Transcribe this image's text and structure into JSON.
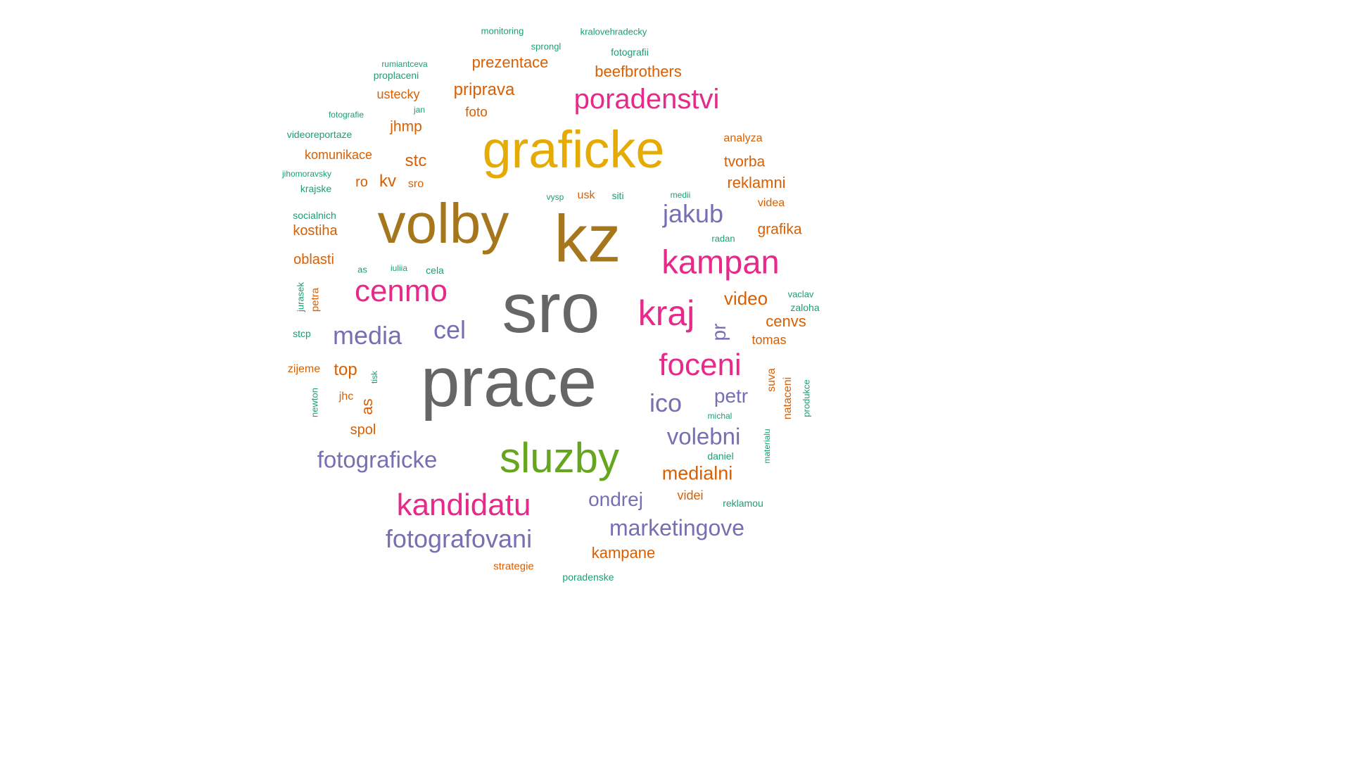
{
  "palette": {
    "gray": "#666666",
    "olive": "#A6761D",
    "gold": "#E6AB02",
    "magenta": "#E7298A",
    "purple": "#7570B3",
    "orange": "#D95F02",
    "teal": "#1B9E77",
    "green": "#66A61E"
  },
  "words": {
    "sro": "sro",
    "prace": "prace",
    "kz": "kz",
    "volby": "volby",
    "graficke": "graficke",
    "sluzby": "sluzby",
    "kampan": "kampan",
    "kraj": "kraj",
    "foceni": "foceni",
    "cenmo": "cenmo",
    "kandidatu": "kandidatu",
    "poradenstvi": "poradenstvi",
    "jakub": "jakub",
    "media": "media",
    "cel": "cel",
    "ico": "ico",
    "volebni": "volebni",
    "fotograficke": "fotograficke",
    "fotografovani": "fotografovani",
    "marketingove": "marketingove",
    "ondrej": "ondrej",
    "petr": "petr",
    "pr": "pr",
    "medialni": "medialni",
    "kampane": "kampane",
    "video": "video",
    "cenvs": "cenvs",
    "tomas": "tomas",
    "grafika": "grafika",
    "reklamni": "reklamni",
    "tvorba": "tvorba",
    "analyza": "analyza",
    "videa": "videa",
    "beefbrothers": "beefbrothers",
    "prezentace": "prezentace",
    "priprava": "priprava",
    "foto": "foto",
    "ustecky": "ustecky",
    "jhmp": "jhmp",
    "komunikace": "komunikace",
    "stc": "stc",
    "kv": "kv",
    "ro": "ro",
    "sro_small": "sro",
    "kostiha": "kostiha",
    "oblasti": "oblasti",
    "top": "top",
    "jhc": "jhc",
    "as_big": "as",
    "spol": "spol",
    "zijeme": "zijeme",
    "videi": "videi",
    "strategie": "strategie",
    "usk": "usk",
    "petra": "petra",
    "suva": "suva",
    "nataceni": "nataceni",
    "monitoring": "monitoring",
    "kralovehradecky": "kralovehradecky",
    "sprongl": "sprongl",
    "fotografii": "fotografii",
    "rumiantceva": "rumiantceva",
    "proplaceni": "proplaceni",
    "fotografie": "fotografie",
    "jan": "jan",
    "videoreportaze": "videoreportaze",
    "jihomoravsky": "jihomoravsky",
    "krajske": "krajske",
    "socialnich": "socialnich",
    "vysp": "vysp",
    "siti": "siti",
    "medii": "medii",
    "radan": "radan",
    "as_small": "as",
    "iuliia": "iuliia",
    "cela": "cela",
    "jurasek": "jurasek",
    "stcp": "stcp",
    "tisk": "tisk",
    "newton": "newton",
    "vaclav": "vaclav",
    "zaloha": "zaloha",
    "michal": "michal",
    "daniel": "daniel",
    "materialu": "materialu",
    "produkce": "produkce",
    "reklamou": "reklamou",
    "poradenske": "poradenske"
  }
}
